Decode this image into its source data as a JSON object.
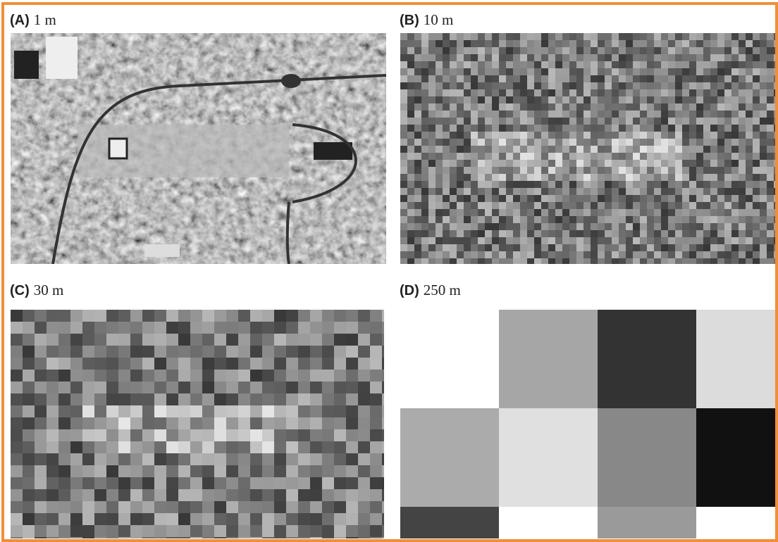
{
  "panels": [
    {
      "letter": "(A)",
      "resolution": "1 m"
    },
    {
      "letter": "(B)",
      "resolution": "10 m"
    },
    {
      "letter": "(C)",
      "resolution": "30 m"
    },
    {
      "letter": "(D)",
      "resolution": "250 m"
    }
  ]
}
